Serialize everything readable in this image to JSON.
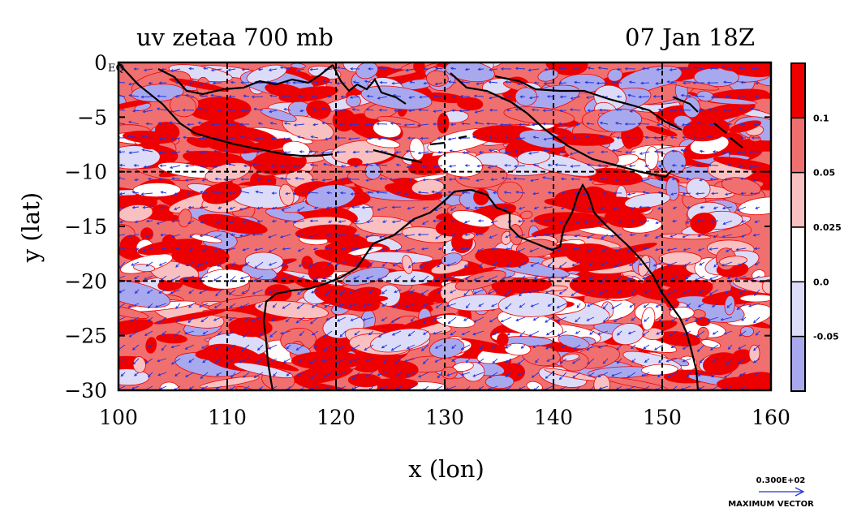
{
  "chart_data": {
    "type": "heatmap",
    "title_left": "uv zetaa 700 mb",
    "title_right": "07 Jan 18Z",
    "xlabel": "x (lon)",
    "ylabel": "y (lat)",
    "xlim": [
      100,
      160
    ],
    "ylim": [
      -30,
      0
    ],
    "x_ticks": [
      100,
      110,
      120,
      130,
      140,
      150,
      160
    ],
    "y_ticks": [
      0,
      -5,
      -10,
      -15,
      -20,
      -25,
      -30
    ],
    "x_tick_labels": [
      "100",
      "110",
      "120",
      "130",
      "140",
      "150",
      "160"
    ],
    "y_tick_labels": [
      "0",
      "−5",
      "−10",
      "−15",
      "−20",
      "−25",
      "−30"
    ],
    "eq_label": "EQ",
    "grid": true,
    "colorbar": {
      "labels": [
        "0.1",
        "0.05",
        "0.025",
        "0.0",
        "-0.05"
      ],
      "colors": [
        "#ee0000",
        "#f07070",
        "#f8c0c0",
        "#ffffff",
        "#dcdcf8",
        "#a8a8ee"
      ]
    },
    "vector_legend": {
      "value_label": "0.300E+02",
      "caption": "MAXIMUM VECTOR"
    },
    "colors": {
      "strong_pos": "#ee0000",
      "pos": "#f07070",
      "weak_pos": "#f8c0c0",
      "neutral": "#ffffff",
      "weak_neg": "#dcdcf8",
      "neg": "#a8a8ee",
      "vectors": "#2233dd",
      "coast": "#000000"
    }
  }
}
